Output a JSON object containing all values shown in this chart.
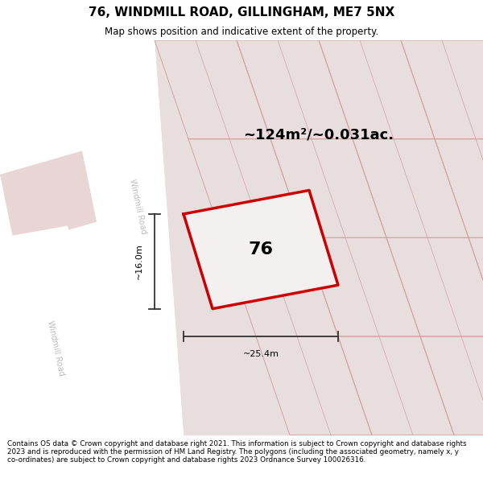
{
  "title": "76, WINDMILL ROAD, GILLINGHAM, ME7 5NX",
  "subtitle": "Map shows position and indicative extent of the property.",
  "footer": "Contains OS data © Crown copyright and database right 2021. This information is subject to Crown copyright and database rights 2023 and is reproduced with the permission of HM Land Registry. The polygons (including the associated geometry, namely x, y co-ordinates) are subject to Crown copyright and database rights 2023 Ordnance Survey 100026316.",
  "area_label": "~124m²/~0.031ac.",
  "width_label": "~25.4m",
  "height_label": "~16.0m",
  "property_number": "76",
  "map_bg": "#ede8e8",
  "road_color": "#ffffff",
  "plot_line_color": "#cc0000",
  "dim_line_color": "#333333",
  "road_label_color": "#bbbbbb",
  "other_plot_line_color": "#d4a0a0",
  "block_fill": "#e8dede",
  "white_block_fill": "#f5f0f0"
}
